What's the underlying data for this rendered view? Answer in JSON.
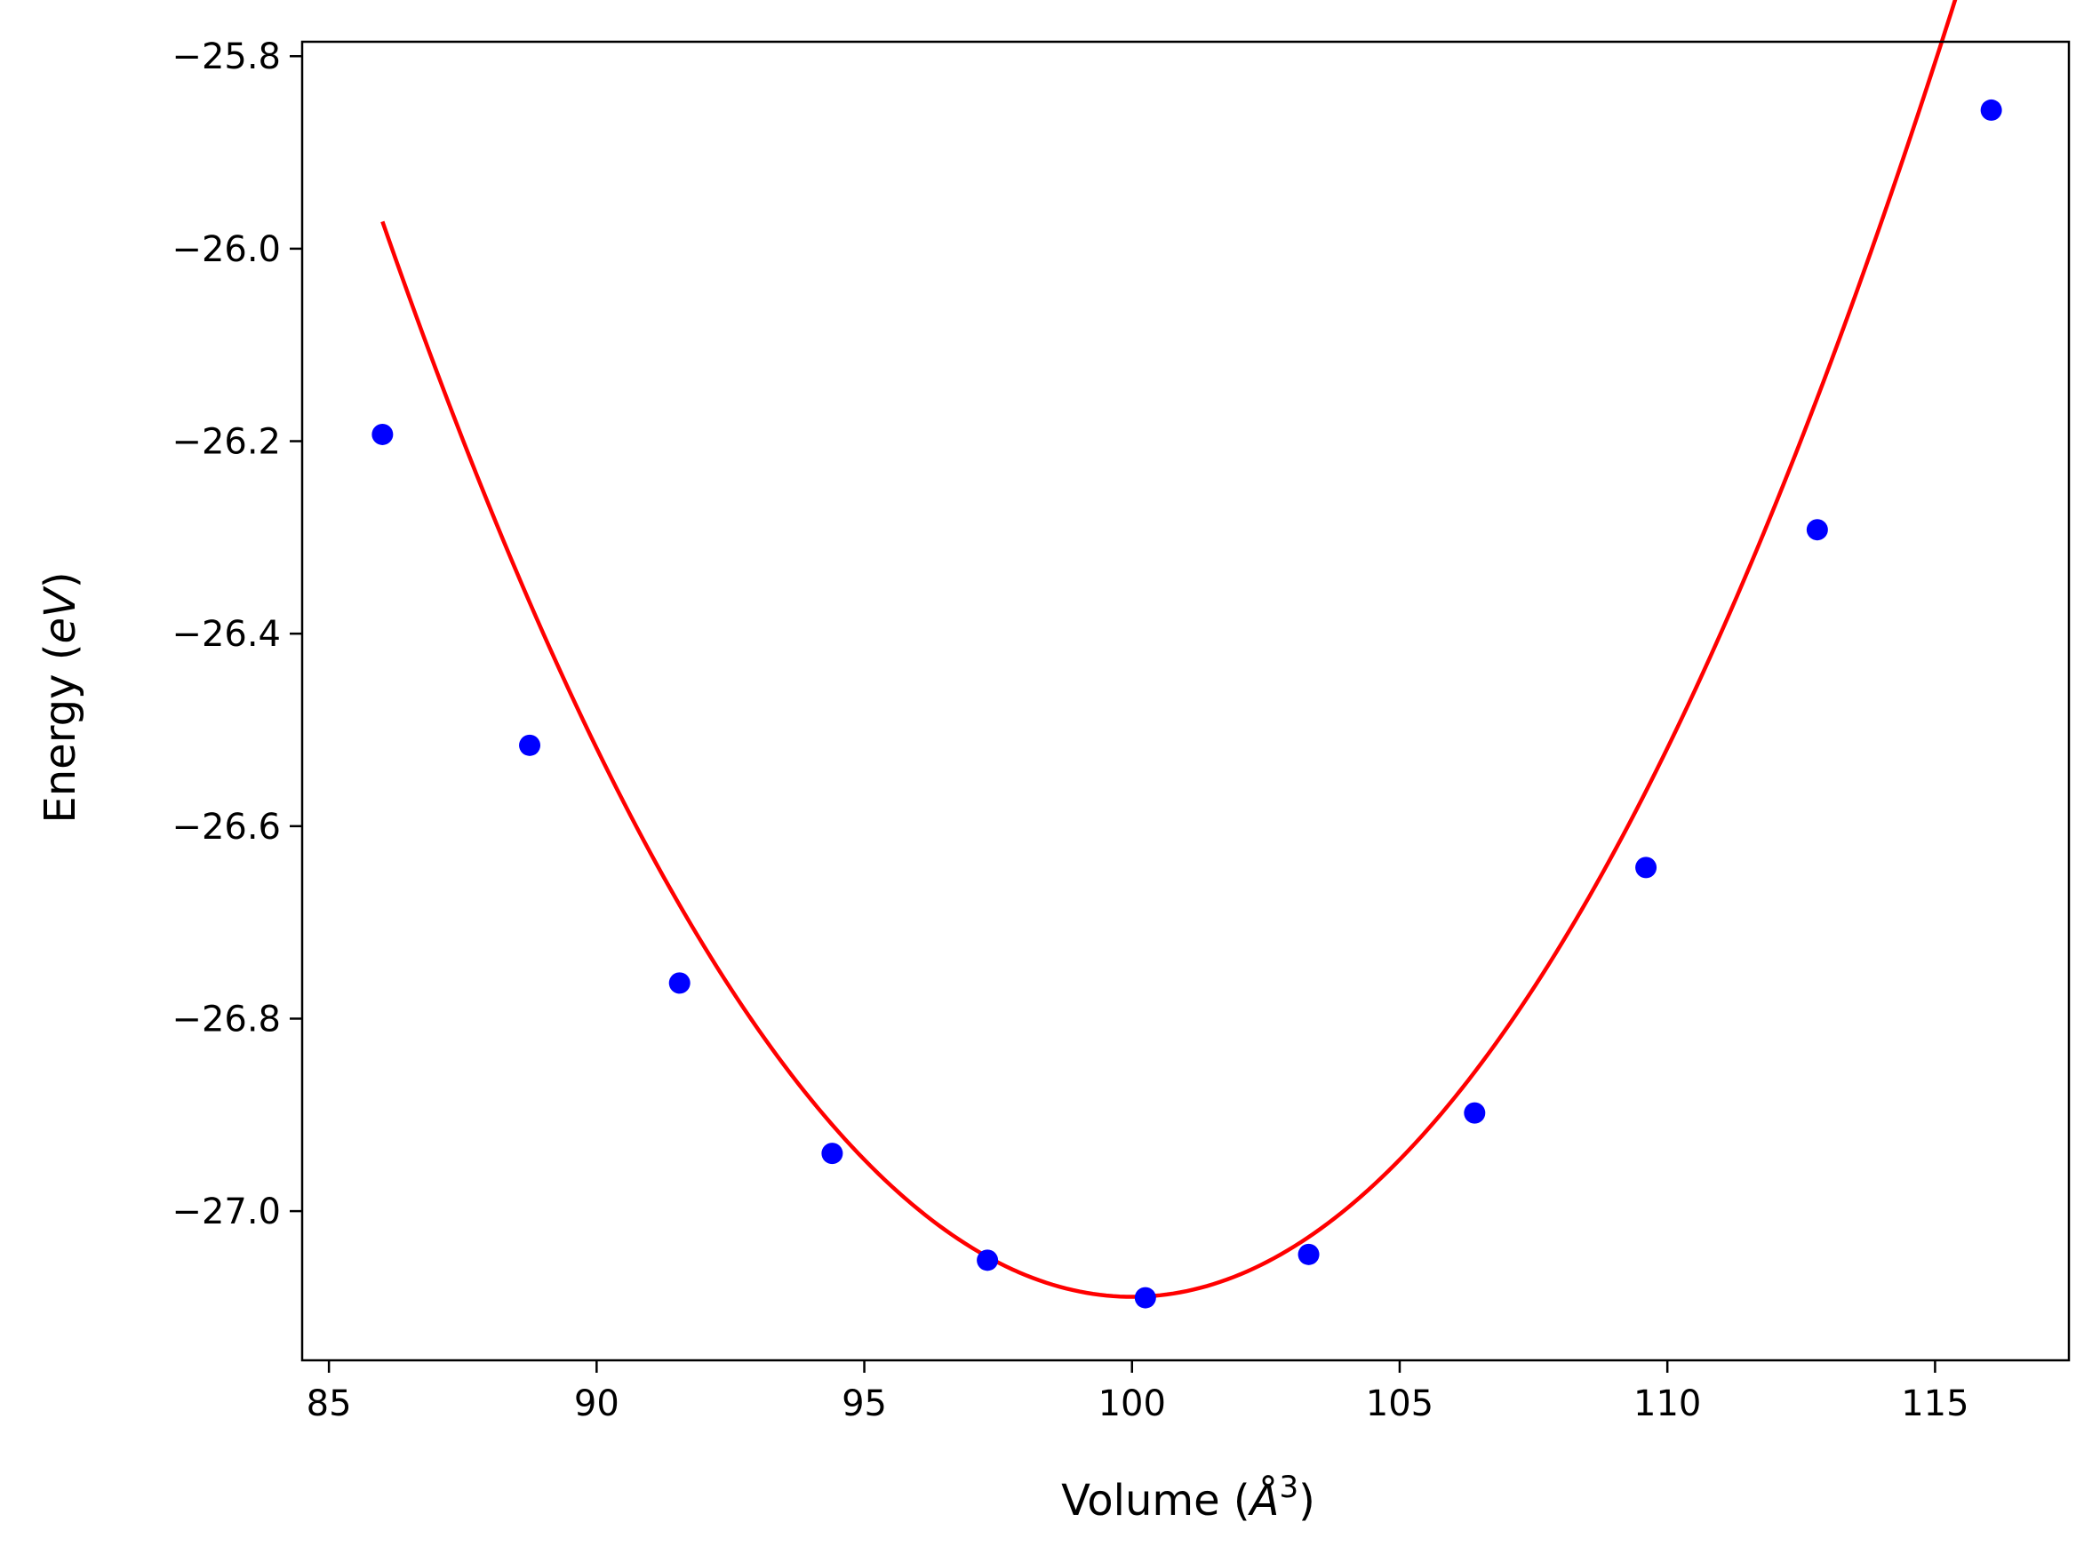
{
  "chart_data": {
    "type": "scatter",
    "title": "",
    "xlabel": "Volume (Å³)",
    "ylabel": "Energy (eV)",
    "xlabel_parts": {
      "prefix": "Volume (",
      "symbol": "Å",
      "sup": "3",
      "suffix": ")"
    },
    "ylabel_parts": {
      "prefix": "Energy (",
      "unit": "eV",
      "suffix": ")"
    },
    "xlim": [
      84.5,
      117.5
    ],
    "ylim": [
      -27.155,
      -25.785
    ],
    "xticks": [
      85,
      90,
      95,
      100,
      105,
      110,
      115
    ],
    "xtick_labels": [
      "85",
      "90",
      "95",
      "100",
      "105",
      "110",
      "115"
    ],
    "yticks": [
      -25.8,
      -26.0,
      -26.2,
      -26.4,
      -26.6,
      -26.8,
      -27.0
    ],
    "ytick_labels": [
      "−25.8",
      "−26.0",
      "−26.2",
      "−26.4",
      "−26.6",
      "−26.8",
      "−27.0"
    ],
    "grid": false,
    "legend": "none",
    "series": [
      {
        "kind": "markers",
        "color": "#0000ff",
        "x": [
          86.0,
          88.75,
          91.55,
          94.4,
          97.3,
          100.25,
          103.3,
          106.4,
          109.6,
          112.8,
          116.05
        ],
        "y": [
          -26.193,
          -26.516,
          -26.763,
          -26.94,
          -27.051,
          -27.09,
          -27.045,
          -26.898,
          -26.643,
          -26.292,
          -25.856
        ]
      },
      {
        "kind": "fit-line",
        "color": "#ff0000",
        "fit": {
          "type": "quadratic",
          "v0": 100.0,
          "e0": -27.089,
          "a": 0.0057
        },
        "x_range": [
          86.0,
          116.05
        ]
      }
    ]
  }
}
